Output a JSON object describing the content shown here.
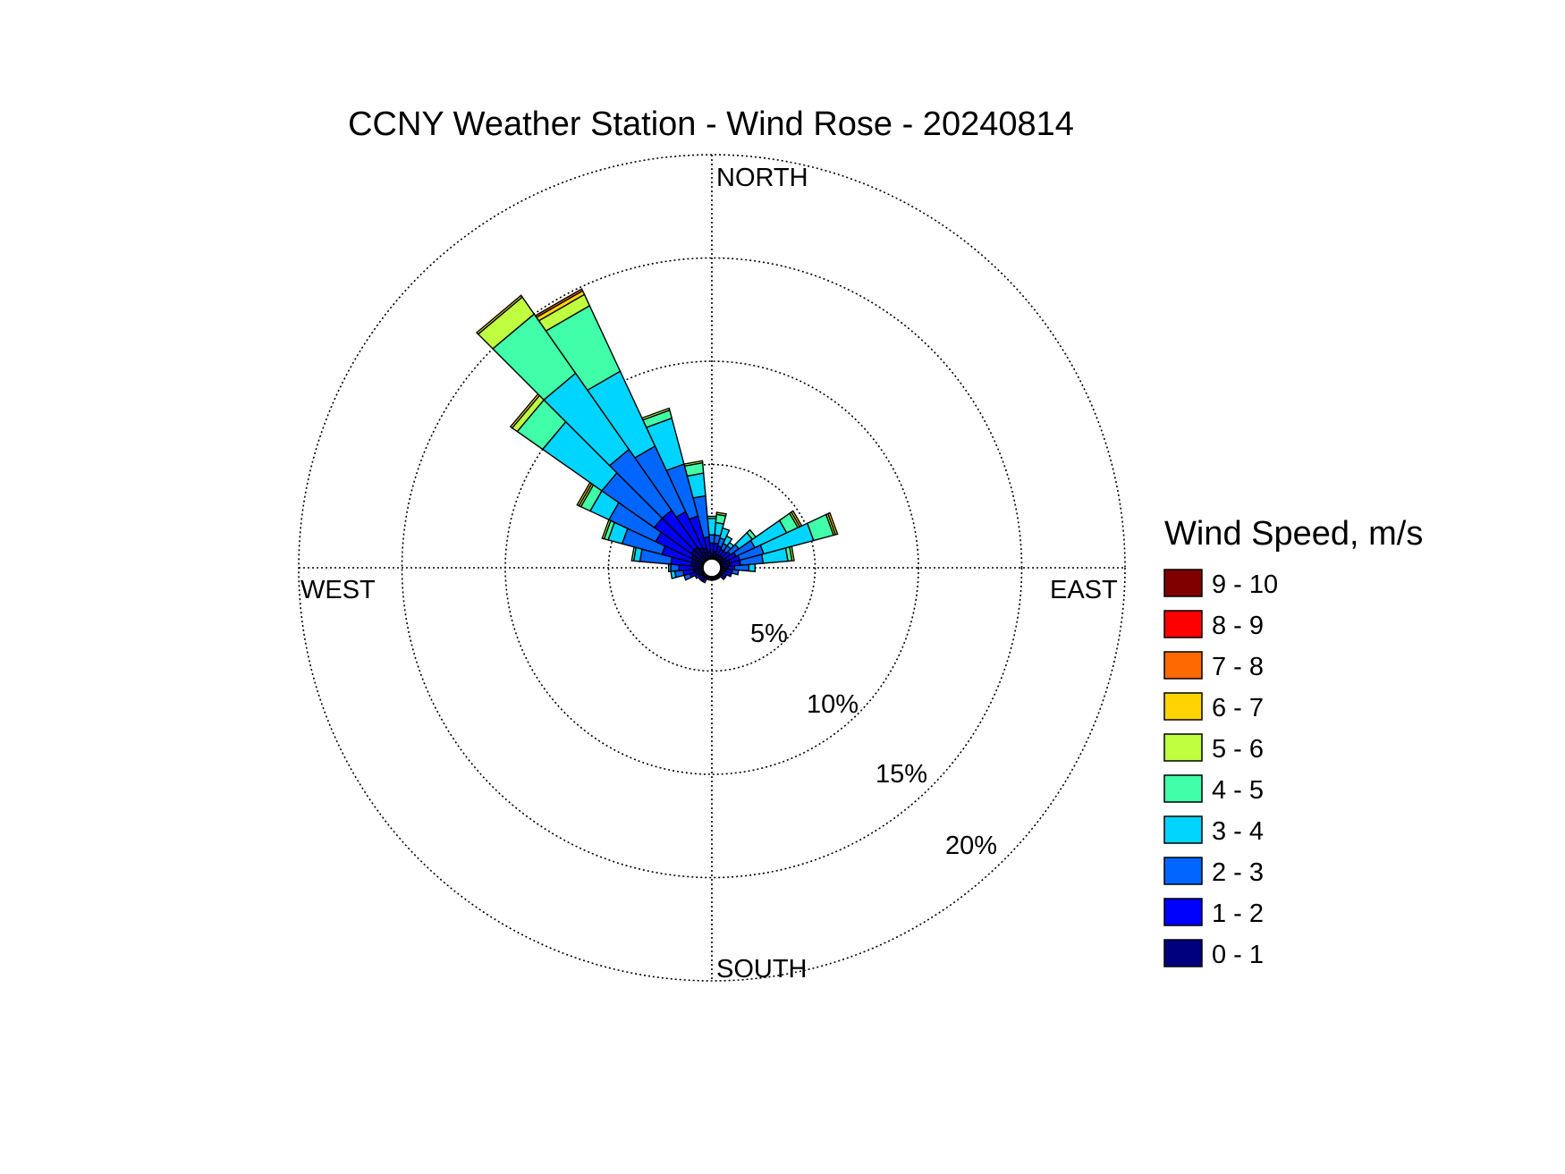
{
  "chart_data": {
    "type": "wind-rose",
    "title": "CCNY Weather Station - Wind Rose - 20240814",
    "directions": {
      "north": "NORTH",
      "south": "SOUTH",
      "east": "EAST",
      "west": "WEST"
    },
    "ring_labels": [
      "5%",
      "10%",
      "15%",
      "20%"
    ],
    "rings": [
      5,
      10,
      15,
      20
    ],
    "max_ring": 20,
    "center_calm_pct": 0.5,
    "legend": {
      "title": "Wind Speed, m/s",
      "bins": [
        {
          "label": "9 - 10",
          "color": "#800000"
        },
        {
          "label": "8 - 9",
          "color": "#ff0000"
        },
        {
          "label": "7 - 8",
          "color": "#ff6a00"
        },
        {
          "label": "6 - 7",
          "color": "#ffd400"
        },
        {
          "label": "5 - 6",
          "color": "#bfff40"
        },
        {
          "label": "4 - 5",
          "color": "#40ffa8"
        },
        {
          "label": "3 - 4",
          "color": "#00d5ff"
        },
        {
          "label": "2 - 3",
          "color": "#0066ff"
        },
        {
          "label": "1 - 2",
          "color": "#0000ff"
        },
        {
          "label": "0 - 1",
          "color": "#00007f"
        }
      ]
    },
    "sector_width_deg": 10,
    "bin_order": [
      "0 - 1",
      "1 - 2",
      "2 - 3",
      "3 - 4",
      "4 - 5",
      "5 - 6",
      "6 - 7",
      "7 - 8",
      "8 - 9",
      "9 - 10"
    ],
    "sectors": [
      {
        "direction_deg": 0,
        "cumulative_pct": [
          0.7,
          1.2,
          1.6,
          2.4,
          2.5
        ]
      },
      {
        "direction_deg": 10,
        "cumulative_pct": [
          0.8,
          1.2,
          1.6,
          2.2,
          2.6,
          2.7
        ]
      },
      {
        "direction_deg": 20,
        "cumulative_pct": [
          0.7,
          1.1,
          1.5,
          2.0
        ]
      },
      {
        "direction_deg": 30,
        "cumulative_pct": [
          0.7,
          1.0,
          1.3,
          1.7
        ]
      },
      {
        "direction_deg": 40,
        "cumulative_pct": [
          0.7,
          1.0,
          1.3,
          1.5
        ]
      },
      {
        "direction_deg": 50,
        "cumulative_pct": [
          0.7,
          1.1,
          1.6,
          2.4,
          2.6
        ]
      },
      {
        "direction_deg": 60,
        "cumulative_pct": [
          0.8,
          1.3,
          2.3,
          4.0,
          4.6,
          4.7,
          4.8
        ]
      },
      {
        "direction_deg": 70,
        "cumulative_pct": [
          0.9,
          1.4,
          2.6,
          5.1,
          6.1,
          6.2,
          6.3
        ]
      },
      {
        "direction_deg": 80,
        "cumulative_pct": [
          0.9,
          1.4,
          2.5,
          3.7,
          3.9,
          4.0
        ]
      },
      {
        "direction_deg": 90,
        "cumulative_pct": [
          0.8,
          1.1,
          1.8,
          2.1
        ]
      },
      {
        "direction_deg": 100,
        "cumulative_pct": [
          0.7,
          1.0,
          1.3
        ]
      },
      {
        "direction_deg": 110,
        "cumulative_pct": [
          0.6,
          1.0
        ]
      },
      {
        "direction_deg": 120,
        "cumulative_pct": [
          0.6,
          0.8
        ]
      },
      {
        "direction_deg": 130,
        "cumulative_pct": [
          0.6,
          0.8
        ]
      },
      {
        "direction_deg": 140,
        "cumulative_pct": [
          0.6
        ]
      },
      {
        "direction_deg": 150,
        "cumulative_pct": [
          0.6
        ]
      },
      {
        "direction_deg": 160,
        "cumulative_pct": [
          0.6
        ]
      },
      {
        "direction_deg": 170,
        "cumulative_pct": [
          0.6
        ]
      },
      {
        "direction_deg": 180,
        "cumulative_pct": [
          0.6
        ]
      },
      {
        "direction_deg": 190,
        "cumulative_pct": [
          0.6
        ]
      },
      {
        "direction_deg": 200,
        "cumulative_pct": [
          0.6
        ]
      },
      {
        "direction_deg": 210,
        "cumulative_pct": [
          0.6,
          0.8
        ]
      },
      {
        "direction_deg": 220,
        "cumulative_pct": [
          0.6,
          0.8
        ]
      },
      {
        "direction_deg": 230,
        "cumulative_pct": [
          0.6,
          0.8
        ]
      },
      {
        "direction_deg": 240,
        "cumulative_pct": [
          0.7,
          0.9
        ]
      },
      {
        "direction_deg": 250,
        "cumulative_pct": [
          0.8,
          1.1,
          1.4
        ]
      },
      {
        "direction_deg": 260,
        "cumulative_pct": [
          0.9,
          1.4,
          1.8,
          2.0
        ]
      },
      {
        "direction_deg": 270,
        "cumulative_pct": [
          0.9,
          1.6,
          2.0,
          2.1
        ]
      },
      {
        "direction_deg": 280,
        "cumulative_pct": [
          1.0,
          2.0,
          3.5,
          3.8,
          3.9
        ]
      },
      {
        "direction_deg": 290,
        "cumulative_pct": [
          1.0,
          2.5,
          4.5,
          5.2,
          5.4,
          5.5
        ]
      },
      {
        "direction_deg": 300,
        "cumulative_pct": [
          1.1,
          3.0,
          5.5,
          6.5,
          7.0,
          7.1,
          7.2
        ]
      },
      {
        "direction_deg": 310,
        "cumulative_pct": [
          1.2,
          3.4,
          6.5,
          10.0,
          11.5,
          11.8,
          11.9
        ]
      },
      {
        "direction_deg": 320,
        "cumulative_pct": [
          1.2,
          3.4,
          7.0,
          11.5,
          15.0,
          16.0,
          16.1
        ]
      },
      {
        "direction_deg": 330,
        "cumulative_pct": [
          1.1,
          3.0,
          6.5,
          10.5,
          14.0,
          14.6,
          14.8,
          14.9
        ]
      },
      {
        "direction_deg": 340,
        "cumulative_pct": [
          1.0,
          2.6,
          5.2,
          7.5,
          7.9,
          8.0
        ]
      },
      {
        "direction_deg": 350,
        "cumulative_pct": [
          0.8,
          1.5,
          3.5,
          4.6,
          5.1,
          5.2
        ]
      }
    ]
  }
}
